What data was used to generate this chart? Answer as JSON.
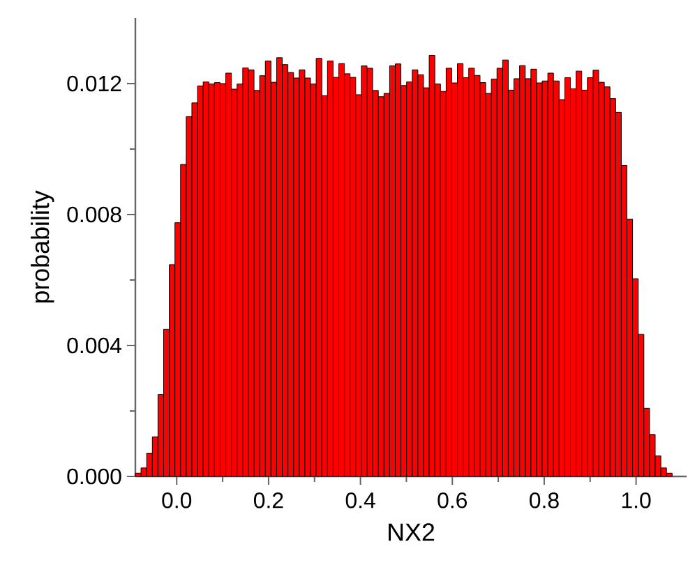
{
  "chart_data": {
    "type": "histogram",
    "xlabel": "NX2",
    "ylabel": "probability",
    "color": "#ff0000",
    "bins": [
      -0.09,
      -0.0777,
      -0.0654,
      -0.0531,
      -0.0408,
      -0.0285,
      -0.0162,
      -0.0039,
      0.0084,
      0.0207,
      0.033,
      0.0453,
      0.0576,
      0.0699,
      0.0822,
      0.0945,
      0.1068,
      0.1191,
      0.1314,
      0.1437,
      0.156,
      0.1683,
      0.1806,
      0.1929,
      0.2052,
      0.2175,
      0.2298,
      0.2421,
      0.2544,
      0.2667,
      0.279,
      0.2913,
      0.3036,
      0.3159,
      0.3282,
      0.3405,
      0.3528,
      0.3651,
      0.3774,
      0.3897,
      0.402,
      0.4143,
      0.4266,
      0.4389,
      0.4512,
      0.4635,
      0.4758,
      0.4881,
      0.5004,
      0.5127,
      0.525,
      0.5373,
      0.5496,
      0.5619,
      0.5742,
      0.5865,
      0.5988,
      0.6111,
      0.6234,
      0.6357,
      0.648,
      0.6603,
      0.6726,
      0.6849,
      0.6972,
      0.7095,
      0.7218,
      0.7341,
      0.7464,
      0.7587,
      0.771,
      0.7833,
      0.7956,
      0.8079,
      0.8202,
      0.8325,
      0.8448,
      0.8571,
      0.8694,
      0.8817,
      0.894,
      0.9063,
      0.9186,
      0.9309,
      0.9432,
      0.9555,
      0.9678,
      0.9801,
      0.9924,
      1.0047,
      1.017,
      1.0293,
      1.0416,
      1.0539,
      1.0662,
      1.0785
    ],
    "values": [
      0.0001,
      0.00026,
      0.00071,
      0.00121,
      0.0025,
      0.0045,
      0.00647,
      0.00775,
      0.00953,
      0.01099,
      0.01141,
      0.01193,
      0.01205,
      0.01199,
      0.01203,
      0.012,
      0.01232,
      0.01183,
      0.01199,
      0.01248,
      0.01242,
      0.01179,
      0.01224,
      0.01269,
      0.01204,
      0.01279,
      0.01258,
      0.01234,
      0.01217,
      0.01242,
      0.01217,
      0.01199,
      0.01277,
      0.01163,
      0.01269,
      0.01219,
      0.01261,
      0.0123,
      0.01219,
      0.01166,
      0.01254,
      0.01247,
      0.01179,
      0.0116,
      0.0117,
      0.01254,
      0.0126,
      0.01194,
      0.01205,
      0.01242,
      0.01227,
      0.01187,
      0.01286,
      0.01199,
      0.01176,
      0.01247,
      0.01202,
      0.01261,
      0.01218,
      0.01247,
      0.01225,
      0.01203,
      0.0117,
      0.01214,
      0.01247,
      0.01272,
      0.0118,
      0.01215,
      0.01255,
      0.01215,
      0.01244,
      0.01202,
      0.01208,
      0.01232,
      0.01208,
      0.01151,
      0.01218,
      0.01184,
      0.01238,
      0.0118,
      0.01218,
      0.01241,
      0.01204,
      0.0119,
      0.01154,
      0.01112,
      0.0095,
      0.00786,
      0.00604,
      0.00434,
      0.00208,
      0.00128,
      0.00063,
      0.00026,
      0.0001
    ],
    "xlim": [
      -0.09,
      1.11
    ],
    "ylim": [
      0,
      0.014
    ],
    "xticks": [
      {
        "value": 0,
        "label": "0.0"
      },
      {
        "value": 0.2,
        "label": "0.2"
      },
      {
        "value": 0.4,
        "label": "0.4"
      },
      {
        "value": 0.6,
        "label": "0.6"
      },
      {
        "value": 0.8,
        "label": "0.8"
      },
      {
        "value": 1.0,
        "label": "1.0"
      }
    ],
    "yticks": [
      {
        "value": 0,
        "label": "0.000"
      },
      {
        "value": 0.004,
        "label": "0.004"
      },
      {
        "value": 0.008,
        "label": "0.008"
      },
      {
        "value": 0.012,
        "label": "0.012"
      }
    ],
    "grid": false
  }
}
